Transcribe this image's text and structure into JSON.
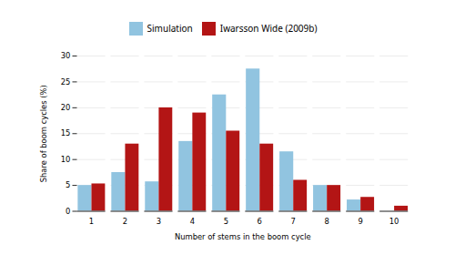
{
  "chart_data": {
    "type": "bar",
    "categories": [
      1,
      2,
      3,
      4,
      5,
      6,
      7,
      8,
      9,
      10
    ],
    "series": [
      {
        "name": "Simulation",
        "color": "#91c4e0",
        "values": [
          5.0,
          7.5,
          5.7,
          13.5,
          22.5,
          27.5,
          11.5,
          5.0,
          2.2,
          0.0
        ]
      },
      {
        "name": "Iwarsson Wide (2009b)",
        "color": "#b31515",
        "values": [
          5.3,
          13.0,
          20.0,
          19.0,
          15.5,
          13.0,
          6.0,
          5.0,
          2.7,
          1.0
        ]
      }
    ],
    "xlabel": "Number of stems in the boom cycle",
    "ylabel": "Share of boom cycles (%)",
    "ylim": [
      0,
      30
    ],
    "yticks": [
      0,
      5,
      10,
      15,
      20,
      25,
      30
    ],
    "grid": true,
    "legend": "top"
  }
}
